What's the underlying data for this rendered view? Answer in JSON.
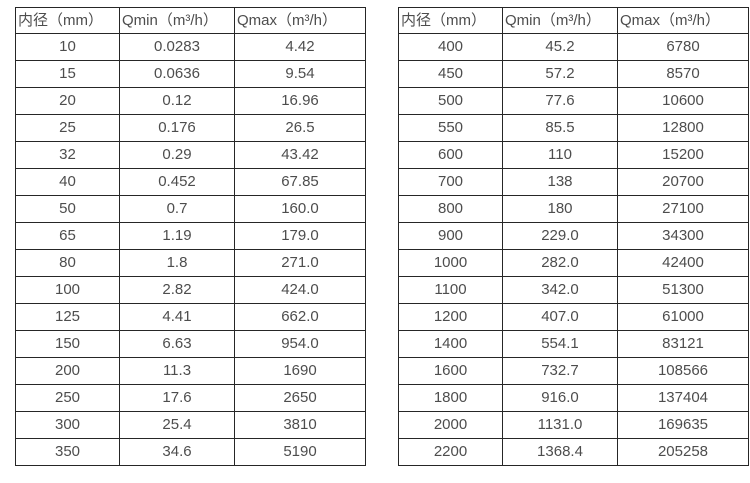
{
  "colors": {
    "background": "#ffffff",
    "border": "#262626",
    "text": "#4d4d4d"
  },
  "chart_data": [
    {
      "type": "table",
      "title": "",
      "headers": [
        "内径（mm）",
        "Qmin（m³/h）",
        "Qmax（m³/h）"
      ],
      "rows": [
        [
          "10",
          "0.0283",
          "4.42"
        ],
        [
          "15",
          "0.0636",
          "9.54"
        ],
        [
          "20",
          "0.12",
          "16.96"
        ],
        [
          "25",
          "0.176",
          "26.5"
        ],
        [
          "32",
          "0.29",
          "43.42"
        ],
        [
          "40",
          "0.452",
          "67.85"
        ],
        [
          "50",
          "0.7",
          "160.0"
        ],
        [
          "65",
          "1.19",
          "179.0"
        ],
        [
          "80",
          "1.8",
          "271.0"
        ],
        [
          "100",
          "2.82",
          "424.0"
        ],
        [
          "125",
          "4.41",
          "662.0"
        ],
        [
          "150",
          "6.63",
          "954.0"
        ],
        [
          "200",
          "11.3",
          "1690"
        ],
        [
          "250",
          "17.6",
          "2650"
        ],
        [
          "300",
          "25.4",
          "3810"
        ],
        [
          "350",
          "34.6",
          "5190"
        ]
      ]
    },
    {
      "type": "table",
      "title": "",
      "headers": [
        "内径（mm）",
        "Qmin（m³/h）",
        "Qmax（m³/h）"
      ],
      "rows": [
        [
          "400",
          "45.2",
          "6780"
        ],
        [
          "450",
          "57.2",
          "8570"
        ],
        [
          "500",
          "77.6",
          "10600"
        ],
        [
          "550",
          "85.5",
          "12800"
        ],
        [
          "600",
          "110",
          "15200"
        ],
        [
          "700",
          "138",
          "20700"
        ],
        [
          "800",
          "180",
          "27100"
        ],
        [
          "900",
          "229.0",
          "34300"
        ],
        [
          "1000",
          "282.0",
          "42400"
        ],
        [
          "1100",
          "342.0",
          "51300"
        ],
        [
          "1200",
          "407.0",
          "61000"
        ],
        [
          "1400",
          "554.1",
          "83121"
        ],
        [
          "1600",
          "732.7",
          "108566"
        ],
        [
          "1800",
          "916.0",
          "137404"
        ],
        [
          "2000",
          "1131.0",
          "169635"
        ],
        [
          "2200",
          "1368.4",
          "205258"
        ]
      ]
    }
  ]
}
